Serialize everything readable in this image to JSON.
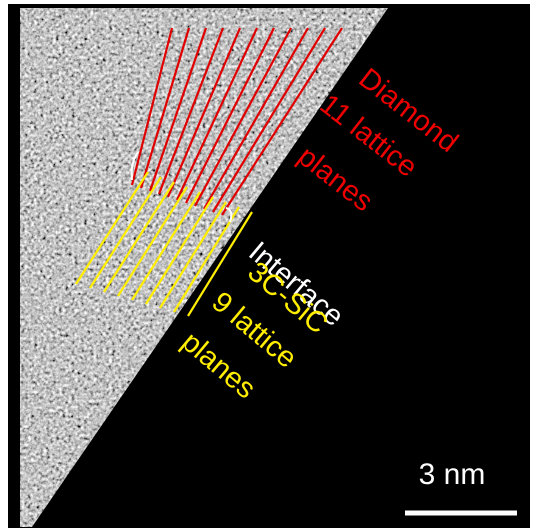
{
  "annotations": {
    "diamond": [
      "Diamond",
      "11 lattice",
      "planes"
    ],
    "interface": "Interface",
    "sic": [
      "3C-SiC",
      "9 lattice",
      "planes"
    ]
  },
  "scale_bar": "3 nm"
}
